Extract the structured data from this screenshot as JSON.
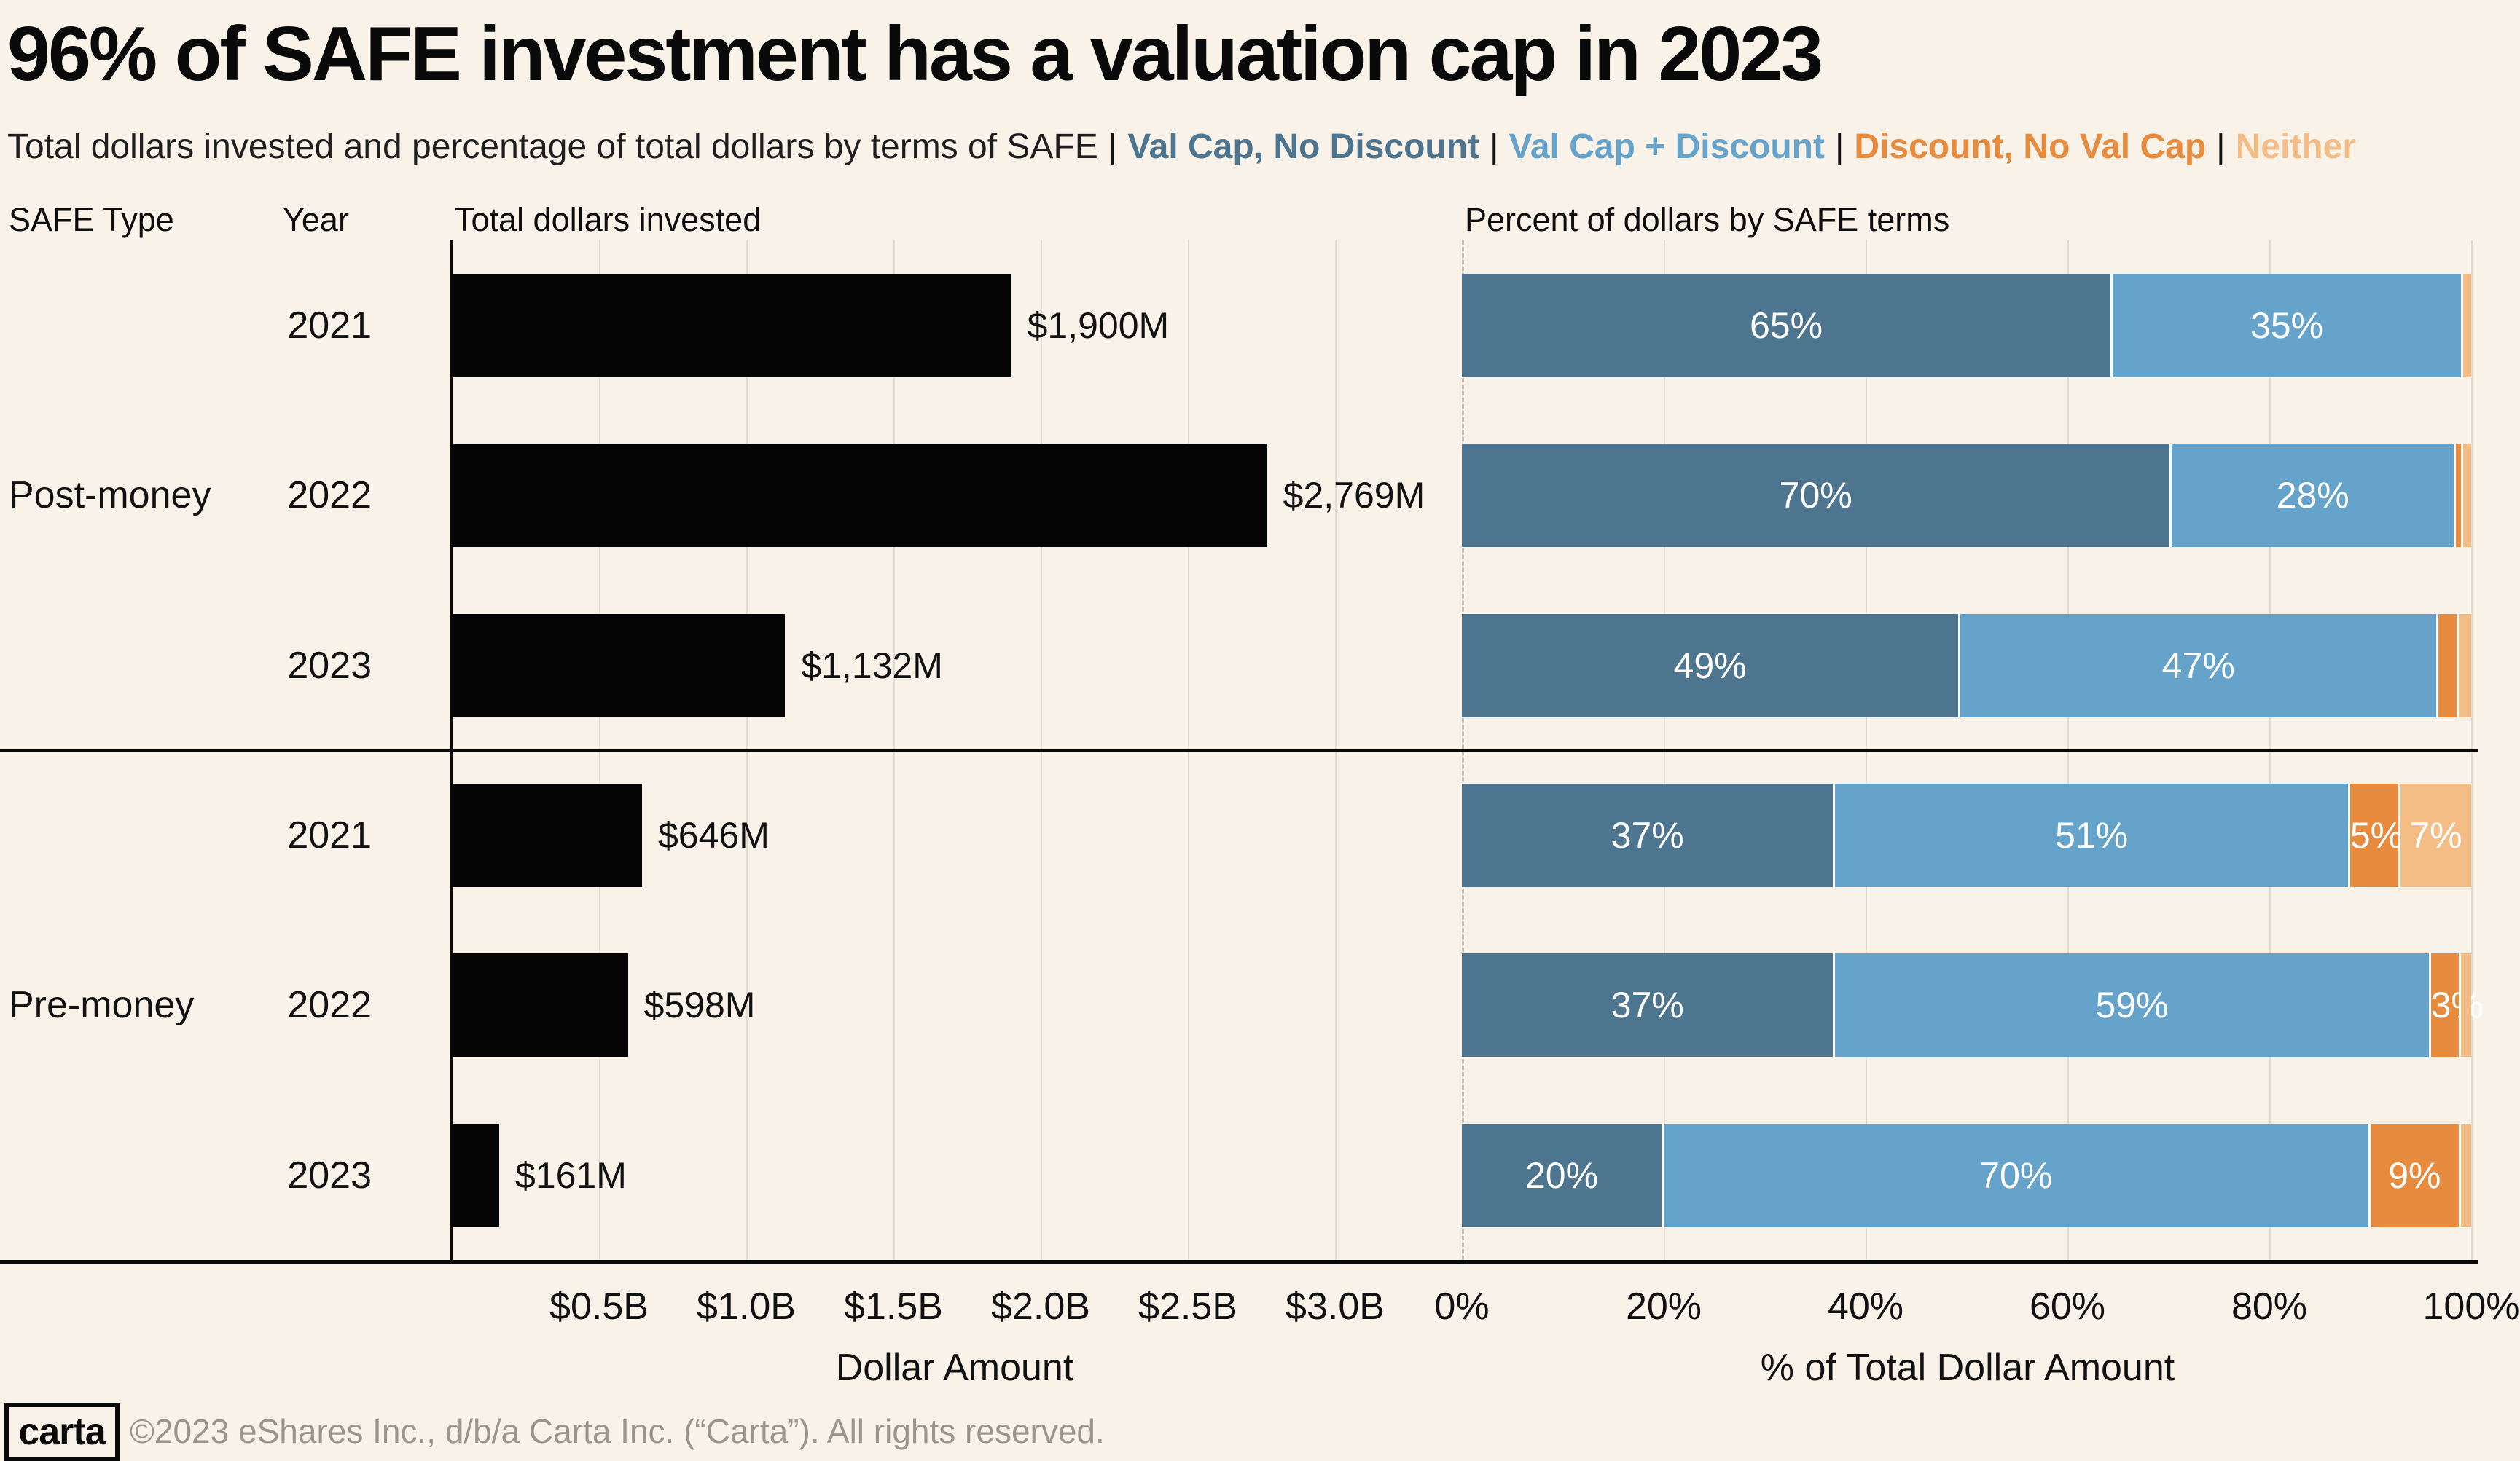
{
  "title": "96% of SAFE investment has a valuation cap in 2023",
  "subtitle": {
    "lead": "Total dollars invested and percentage of total dollars by terms of SAFE",
    "separator": "|"
  },
  "legend": [
    {
      "key": "val_cap_no_discount",
      "label": "Val Cap, No Discount",
      "color": "#4d758f"
    },
    {
      "key": "val_cap_discount",
      "label": "Val Cap + Discount",
      "color": "#66a3cb"
    },
    {
      "key": "discount_no_val_cap",
      "label": "Discount, No Val Cap",
      "color": "#e78b3e"
    },
    {
      "key": "neither",
      "label": "Neither",
      "color": "#f3bd85"
    }
  ],
  "columns": {
    "safe_type": "SAFE Type",
    "year": "Year",
    "total": "Total dollars invested",
    "percent": "Percent of dollars by SAFE terms"
  },
  "chart_data": {
    "type": "bar",
    "orientation": "horizontal",
    "groups": [
      "Post-money",
      "Pre-money"
    ],
    "series_names": [
      "Val Cap, No Discount",
      "Val Cap + Discount",
      "Discount, No Val Cap",
      "Neither"
    ],
    "rows": [
      {
        "group": "Post-money",
        "year": "2021",
        "total_invested_m": 1900,
        "total_label": "$1,900M",
        "segments": [
          {
            "key": "val_cap_no_discount",
            "pct": 65,
            "label": "65%"
          },
          {
            "key": "val_cap_discount",
            "pct": 35,
            "label": "35%"
          },
          {
            "key": "neither",
            "pct": 0.8,
            "label": ""
          }
        ]
      },
      {
        "group": "Post-money",
        "year": "2022",
        "total_invested_m": 2769,
        "total_label": "$2,769M",
        "segments": [
          {
            "key": "val_cap_no_discount",
            "pct": 70,
            "label": "70%"
          },
          {
            "key": "val_cap_discount",
            "pct": 28,
            "label": "28%"
          },
          {
            "key": "discount_no_val_cap",
            "pct": 0.7,
            "label": ""
          },
          {
            "key": "neither",
            "pct": 0.8,
            "label": ""
          }
        ]
      },
      {
        "group": "Post-money",
        "year": "2023",
        "total_invested_m": 1132,
        "total_label": "$1,132M",
        "segments": [
          {
            "key": "val_cap_no_discount",
            "pct": 49,
            "label": "49%"
          },
          {
            "key": "val_cap_discount",
            "pct": 47,
            "label": "47%"
          },
          {
            "key": "discount_no_val_cap",
            "pct": 2,
            "label": ""
          },
          {
            "key": "neither",
            "pct": 1.2,
            "label": ""
          }
        ]
      },
      {
        "group": "Pre-money",
        "year": "2021",
        "total_invested_m": 646,
        "total_label": "$646M",
        "segments": [
          {
            "key": "val_cap_no_discount",
            "pct": 37,
            "label": "37%"
          },
          {
            "key": "val_cap_discount",
            "pct": 51,
            "label": "51%"
          },
          {
            "key": "discount_no_val_cap",
            "pct": 5,
            "label": "5%"
          },
          {
            "key": "neither",
            "pct": 7,
            "label": "7%"
          }
        ]
      },
      {
        "group": "Pre-money",
        "year": "2022",
        "total_invested_m": 598,
        "total_label": "$598M",
        "segments": [
          {
            "key": "val_cap_no_discount",
            "pct": 37,
            "label": "37%"
          },
          {
            "key": "val_cap_discount",
            "pct": 59,
            "label": "59%"
          },
          {
            "key": "discount_no_val_cap",
            "pct": 3,
            "label": "3%"
          },
          {
            "key": "neither",
            "pct": 1,
            "label": ""
          }
        ]
      },
      {
        "group": "Pre-money",
        "year": "2023",
        "total_invested_m": 161,
        "total_label": "$161M",
        "segments": [
          {
            "key": "val_cap_no_discount",
            "pct": 20,
            "label": "20%"
          },
          {
            "key": "val_cap_discount",
            "pct": 70,
            "label": "70%"
          },
          {
            "key": "discount_no_val_cap",
            "pct": 9,
            "label": "9%"
          },
          {
            "key": "neither",
            "pct": 1,
            "label": ""
          }
        ]
      }
    ],
    "left_axis": {
      "title": "Dollar Amount",
      "ticks": [
        "$0.5B",
        "$1.0B",
        "$1.5B",
        "$2.0B",
        "$2.5B",
        "$3.0B"
      ],
      "tick_values_b": [
        0.5,
        1.0,
        1.5,
        2.0,
        2.5,
        3.0
      ],
      "unit": "USD billions"
    },
    "right_axis": {
      "title": "% of Total Dollar Amount",
      "ticks": [
        "0%",
        "20%",
        "40%",
        "60%",
        "80%",
        "100%"
      ],
      "tick_values": [
        0,
        20,
        40,
        60,
        80,
        100
      ]
    }
  },
  "footer": {
    "logo": "carta",
    "copyright": "©2023 eShares Inc., d/b/a Carta Inc. (“Carta”). All rights reserved."
  },
  "colors": {
    "background": "#f8f2e9",
    "bar_black": "#050505",
    "val_cap_no_discount": "#4d758f",
    "val_cap_discount": "#66a3cb",
    "discount_no_val_cap": "#e78b3e",
    "neither": "#f3bd85",
    "gridline": "#e2dcd3",
    "zero_dash": "#c8c2b9",
    "axis_line": "#0a0a0a",
    "segment_gap": "#ffffff",
    "footer_text": "#9b958c"
  }
}
